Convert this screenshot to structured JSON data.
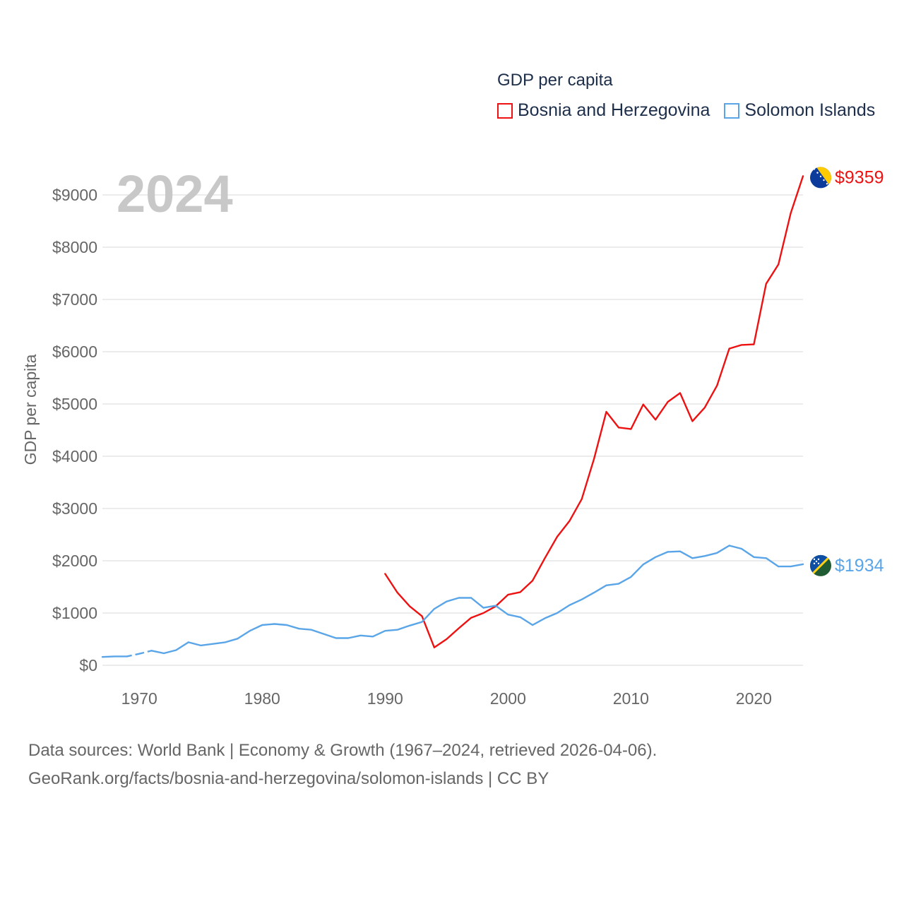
{
  "legend": {
    "title": "GDP per capita",
    "items": [
      {
        "label": "Bosnia and Herzegovina",
        "color": "#ee1111"
      },
      {
        "label": "Solomon Islands",
        "color": "#5aa5e8"
      }
    ]
  },
  "footer": {
    "line1": "Data sources: World Bank | Economy & Growth (1967–2024, retrieved 2026-04-06).",
    "line2": "GeoRank.org/facts/bosnia-and-herzegovina/solomon-islands | CC BY"
  },
  "chart_data": {
    "type": "line",
    "title": "GDP per capita",
    "current_year": "2024",
    "ylabel": "GDP per capita",
    "xlabel": "",
    "xlim": [
      1967,
      2024
    ],
    "ylim": [
      0,
      9000
    ],
    "x_ticks": [
      1970,
      1980,
      1990,
      2000,
      2010,
      2020
    ],
    "y_ticks": [
      0,
      1000,
      2000,
      3000,
      4000,
      5000,
      6000,
      7000,
      8000,
      9000
    ],
    "y_tick_labels": [
      "$0",
      "$1000",
      "$2000",
      "$3000",
      "$4000",
      "$5000",
      "$6000",
      "$7000",
      "$8000",
      "$9000"
    ],
    "grid": true,
    "series": [
      {
        "name": "Bosnia and Herzegovina",
        "color": "#ee1111",
        "end_label": "$9359",
        "flag": "bosnia-flag-icon",
        "points": [
          [
            1990,
            1750
          ],
          [
            1991,
            1390
          ],
          [
            1992,
            1130
          ],
          [
            1993,
            940
          ],
          [
            1994,
            340
          ],
          [
            1995,
            500
          ],
          [
            1996,
            710
          ],
          [
            1997,
            910
          ],
          [
            1998,
            1000
          ],
          [
            1999,
            1130
          ],
          [
            2000,
            1350
          ],
          [
            2001,
            1400
          ],
          [
            2002,
            1620
          ],
          [
            2003,
            2050
          ],
          [
            2004,
            2460
          ],
          [
            2005,
            2760
          ],
          [
            2006,
            3180
          ],
          [
            2007,
            3950
          ],
          [
            2008,
            4850
          ],
          [
            2009,
            4550
          ],
          [
            2010,
            4520
          ],
          [
            2011,
            4990
          ],
          [
            2012,
            4700
          ],
          [
            2013,
            5040
          ],
          [
            2014,
            5210
          ],
          [
            2015,
            4670
          ],
          [
            2016,
            4930
          ],
          [
            2017,
            5350
          ],
          [
            2018,
            6060
          ],
          [
            2019,
            6130
          ],
          [
            2020,
            6140
          ],
          [
            2021,
            7300
          ],
          [
            2022,
            7670
          ],
          [
            2023,
            8650
          ],
          [
            2024,
            9359
          ]
        ]
      },
      {
        "name": "Solomon Islands",
        "color": "#5aa5e8",
        "end_label": "$1934",
        "flag": "solomon-islands-flag-icon",
        "gap_dashed": [
          [
            1969,
            1971
          ]
        ],
        "points": [
          [
            1967,
            160
          ],
          [
            1968,
            170
          ],
          [
            1969,
            170
          ],
          [
            1970,
            220
          ],
          [
            1971,
            280
          ],
          [
            1972,
            230
          ],
          [
            1973,
            290
          ],
          [
            1974,
            440
          ],
          [
            1975,
            380
          ],
          [
            1976,
            410
          ],
          [
            1977,
            440
          ],
          [
            1978,
            510
          ],
          [
            1979,
            660
          ],
          [
            1980,
            770
          ],
          [
            1981,
            790
          ],
          [
            1982,
            770
          ],
          [
            1983,
            700
          ],
          [
            1984,
            680
          ],
          [
            1985,
            600
          ],
          [
            1986,
            520
          ],
          [
            1987,
            520
          ],
          [
            1988,
            570
          ],
          [
            1989,
            550
          ],
          [
            1990,
            660
          ],
          [
            1991,
            680
          ],
          [
            1992,
            760
          ],
          [
            1993,
            830
          ],
          [
            1994,
            1080
          ],
          [
            1995,
            1220
          ],
          [
            1996,
            1290
          ],
          [
            1997,
            1290
          ],
          [
            1998,
            1100
          ],
          [
            1999,
            1140
          ],
          [
            2000,
            970
          ],
          [
            2001,
            920
          ],
          [
            2002,
            770
          ],
          [
            2003,
            900
          ],
          [
            2004,
            1000
          ],
          [
            2005,
            1150
          ],
          [
            2006,
            1260
          ],
          [
            2007,
            1390
          ],
          [
            2008,
            1530
          ],
          [
            2009,
            1560
          ],
          [
            2010,
            1690
          ],
          [
            2011,
            1930
          ],
          [
            2012,
            2070
          ],
          [
            2013,
            2170
          ],
          [
            2014,
            2180
          ],
          [
            2015,
            2050
          ],
          [
            2016,
            2090
          ],
          [
            2017,
            2150
          ],
          [
            2018,
            2290
          ],
          [
            2019,
            2230
          ],
          [
            2020,
            2070
          ],
          [
            2021,
            2050
          ],
          [
            2022,
            1890
          ],
          [
            2023,
            1890
          ],
          [
            2024,
            1934
          ]
        ]
      }
    ]
  }
}
